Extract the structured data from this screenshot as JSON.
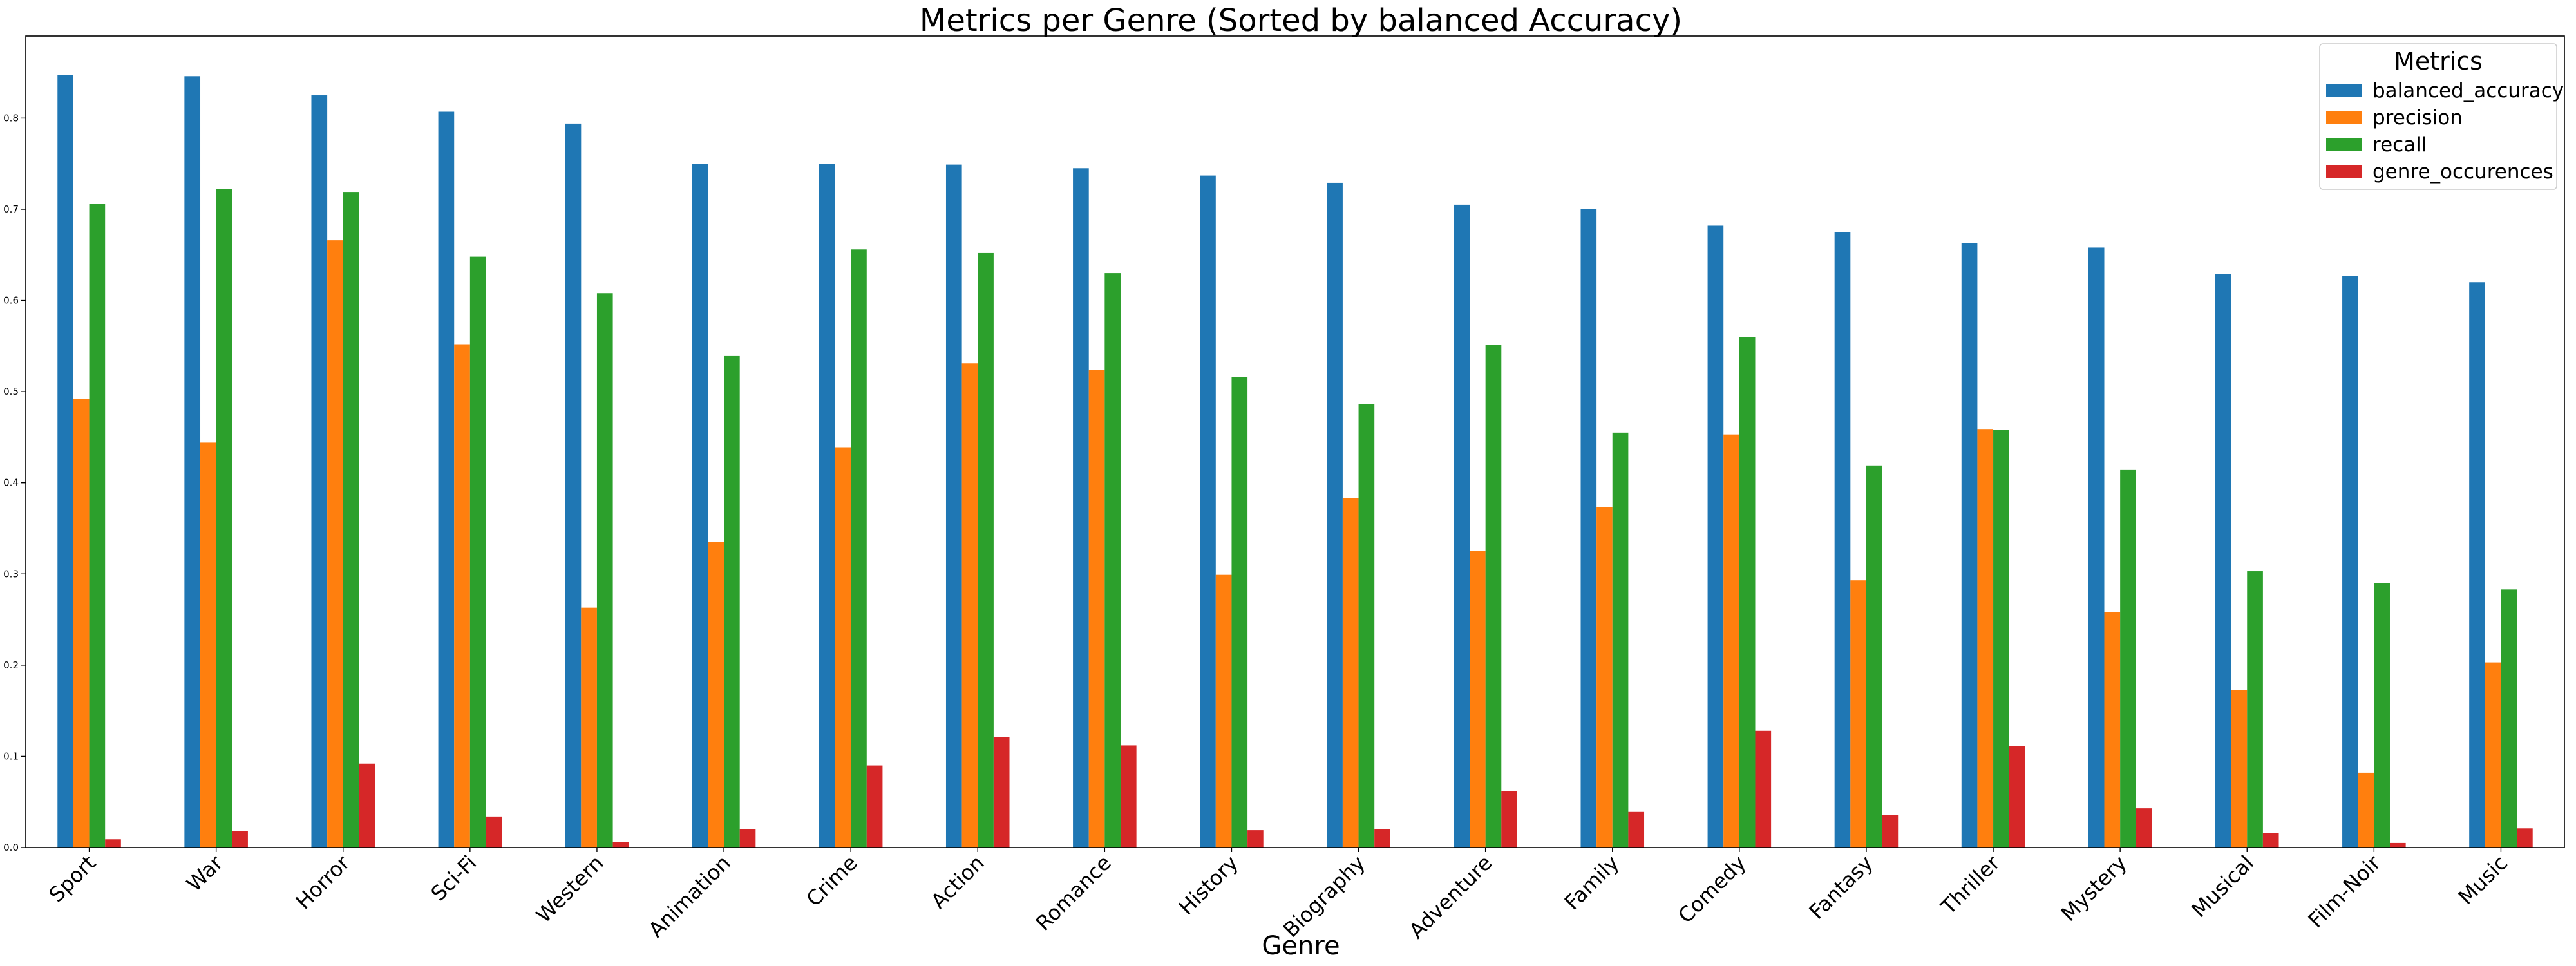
{
  "chart_data": {
    "type": "bar",
    "title": "Metrics per Genre (Sorted by balanced Accuracy)",
    "xlabel": "Genre",
    "ylabel": "",
    "ylim": [
      0,
      0.89
    ],
    "yticks": [
      0.0,
      0.1,
      0.2,
      0.3,
      0.4,
      0.5,
      0.6,
      0.7,
      0.8
    ],
    "ytick_labels": [
      "0.0",
      "0.1",
      "0.2",
      "0.3",
      "0.4",
      "0.5",
      "0.6",
      "0.7",
      "0.8"
    ],
    "grid": false,
    "legend": {
      "title": "Metrics",
      "placement": "top-right"
    },
    "categories": [
      "Sport",
      "War",
      "Horror",
      "Sci-Fi",
      "Western",
      "Animation",
      "Crime",
      "Action",
      "Romance",
      "History",
      "Biography",
      "Adventure",
      "Family",
      "Comedy",
      "Fantasy",
      "Thriller",
      "Mystery",
      "Musical",
      "Film-Noir",
      "Music"
    ],
    "series": [
      {
        "name": "balanced_accuracy",
        "color": "#1f77b4",
        "values": [
          0.847,
          0.846,
          0.825,
          0.807,
          0.794,
          0.75,
          0.75,
          0.749,
          0.745,
          0.737,
          0.729,
          0.705,
          0.7,
          0.682,
          0.675,
          0.663,
          0.658,
          0.629,
          0.627,
          0.62
        ]
      },
      {
        "name": "precision",
        "color": "#ff7f0e",
        "values": [
          0.492,
          0.444,
          0.666,
          0.552,
          0.263,
          0.335,
          0.439,
          0.531,
          0.524,
          0.299,
          0.383,
          0.325,
          0.373,
          0.453,
          0.293,
          0.459,
          0.258,
          0.173,
          0.082,
          0.203
        ]
      },
      {
        "name": "recall",
        "color": "#2ca02c",
        "values": [
          0.706,
          0.722,
          0.719,
          0.648,
          0.608,
          0.539,
          0.656,
          0.652,
          0.63,
          0.516,
          0.486,
          0.551,
          0.455,
          0.56,
          0.419,
          0.458,
          0.414,
          0.303,
          0.29,
          0.283
        ]
      },
      {
        "name": "genre_occurences",
        "color": "#d62728",
        "values": [
          0.009,
          0.018,
          0.092,
          0.034,
          0.006,
          0.02,
          0.09,
          0.121,
          0.112,
          0.019,
          0.02,
          0.062,
          0.039,
          0.128,
          0.036,
          0.111,
          0.043,
          0.016,
          0.005,
          0.021
        ]
      }
    ]
  }
}
